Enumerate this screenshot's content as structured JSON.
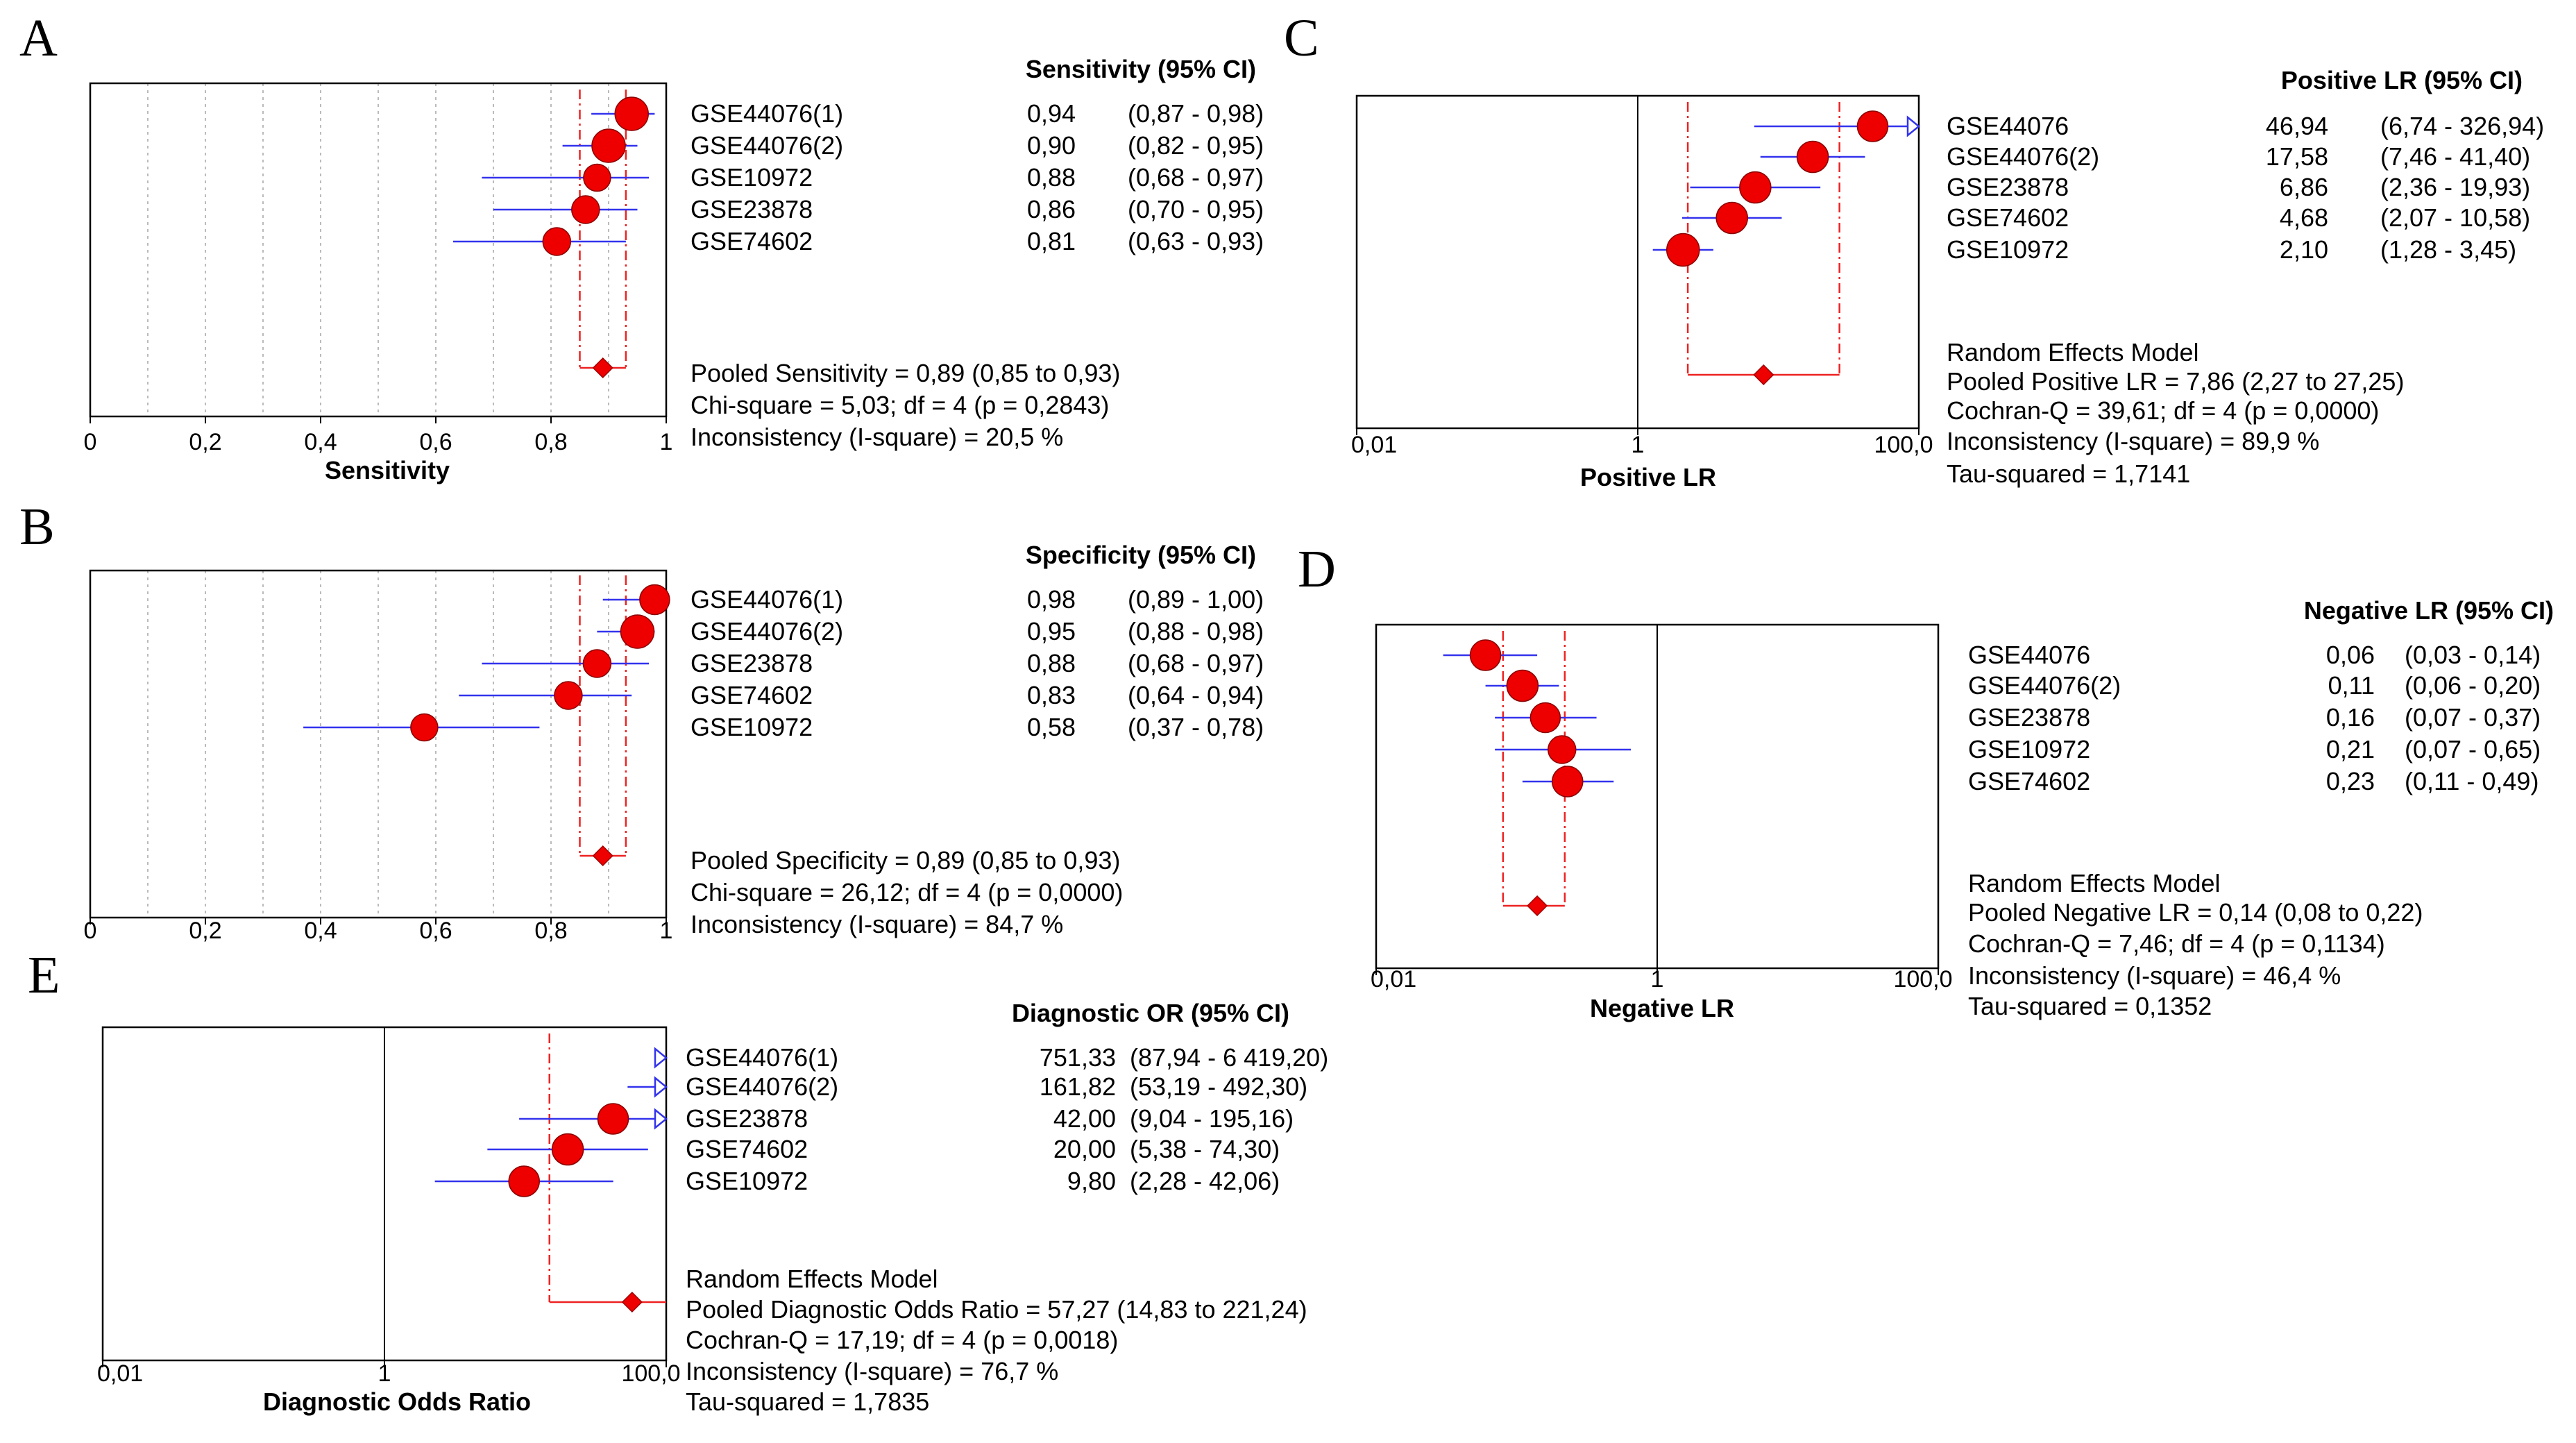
{
  "chart_data": [
    {
      "panel": "A",
      "type": "forest",
      "scale": "linear",
      "xlim": [
        0,
        1
      ],
      "xticks": [
        "0",
        "0,2",
        "0,4",
        "0,6",
        "0,8",
        "1"
      ],
      "xlabel": "Sensitivity",
      "header": "Sensitivity (95% CI)",
      "pooled": {
        "value": 0.89,
        "ci": [
          0.85,
          0.93
        ]
      },
      "arrow_studies": [],
      "studies": [
        {
          "name": "GSE44076(1)",
          "value_text": "0,94",
          "ci_text": "(0,87 - 0,98)",
          "value": 0.94,
          "ci": [
            0.87,
            0.98
          ],
          "weight": 1.0
        },
        {
          "name": "GSE44076(2)",
          "value_text": "0,90",
          "ci_text": "(0,82 - 0,95)",
          "value": 0.9,
          "ci": [
            0.82,
            0.95
          ],
          "weight": 1.0
        },
        {
          "name": "GSE10972",
          "value_text": "0,88",
          "ci_text": "(0,68 - 0,97)",
          "value": 0.88,
          "ci": [
            0.68,
            0.97
          ],
          "weight": 0.55
        },
        {
          "name": "GSE23878",
          "value_text": "0,86",
          "ci_text": "(0,70 - 0,95)",
          "value": 0.86,
          "ci": [
            0.7,
            0.95
          ],
          "weight": 0.6
        },
        {
          "name": "GSE74602",
          "value_text": "0,81",
          "ci_text": "(0,63 - 0,93)",
          "value": 0.81,
          "ci": [
            0.63,
            0.93
          ],
          "weight": 0.6
        }
      ],
      "summary": [
        "Pooled Sensitivity = 0,89 (0,85 to 0,93)",
        "Chi-square = 5,03; df =  4 (p = 0,2843)",
        "Inconsistency (I-square) = 20,5 %"
      ]
    },
    {
      "panel": "B",
      "type": "forest",
      "scale": "linear",
      "xlim": [
        0,
        1
      ],
      "xticks": [
        "0",
        "0,2",
        "0,4",
        "0,6",
        "0,8",
        "1"
      ],
      "xlabel": "",
      "header": "Specificity (95% CI)",
      "pooled": {
        "value": 0.89,
        "ci": [
          0.85,
          0.93
        ]
      },
      "arrow_studies": [],
      "studies": [
        {
          "name": "GSE44076(1)",
          "value_text": "0,98",
          "ci_text": "(0,89 - 1,00)",
          "value": 0.98,
          "ci": [
            0.89,
            1.0
          ],
          "weight": 0.75
        },
        {
          "name": "GSE44076(2)",
          "value_text": "0,95",
          "ci_text": "(0,88 - 0,98)",
          "value": 0.95,
          "ci": [
            0.88,
            0.98
          ],
          "weight": 1.0
        },
        {
          "name": "GSE23878",
          "value_text": "0,88",
          "ci_text": "(0,68 - 0,97)",
          "value": 0.88,
          "ci": [
            0.68,
            0.97
          ],
          "weight": 0.6
        },
        {
          "name": "GSE74602",
          "value_text": "0,83",
          "ci_text": "(0,64 - 0,94)",
          "value": 0.83,
          "ci": [
            0.64,
            0.94
          ],
          "weight": 0.6
        },
        {
          "name": "GSE10972",
          "value_text": "0,58",
          "ci_text": "(0,37 - 0,78)",
          "value": 0.58,
          "ci": [
            0.37,
            0.78
          ],
          "weight": 0.55
        }
      ],
      "summary": [
        "Pooled Specificity = 0,89 (0,85 to 0,93)",
        "Chi-square = 26,12; df =  4 (p = 0,0000)",
        "Inconsistency (I-square) = 84,7 %"
      ]
    },
    {
      "panel": "C",
      "type": "forest",
      "scale": "log",
      "xlim": [
        0.01,
        100
      ],
      "xticks": [
        "0,01",
        "1",
        "100,0"
      ],
      "xlabel": "Positive LR",
      "header": "Positive LR (95% CI)",
      "pooled": {
        "value": 7.86,
        "ci": [
          2.27,
          27.25
        ]
      },
      "arrow_studies": [
        "GSE44076"
      ],
      "studies": [
        {
          "name": "GSE44076",
          "value_text": "46,94",
          "ci_text": "(6,74 - 326,94)",
          "value": 46.94,
          "ci": [
            6.74,
            326.94
          ],
          "weight": 0.8
        },
        {
          "name": "GSE44076(2)",
          "value_text": "17,58",
          "ci_text": "(7,46 - 41,40)",
          "value": 17.58,
          "ci": [
            7.46,
            41.4
          ],
          "weight": 0.85
        },
        {
          "name": "GSE23878",
          "value_text": "6,86",
          "ci_text": "(2,36 - 19,93)",
          "value": 6.86,
          "ci": [
            2.36,
            19.93
          ],
          "weight": 0.85
        },
        {
          "name": "GSE74602",
          "value_text": "4,68",
          "ci_text": "(2,07 - 10,58)",
          "value": 4.68,
          "ci": [
            2.07,
            10.58
          ],
          "weight": 0.85
        },
        {
          "name": "GSE10972",
          "value_text": "2,10",
          "ci_text": "(1,28 - 3,45)",
          "value": 2.1,
          "ci": [
            1.28,
            3.45
          ],
          "weight": 0.95
        }
      ],
      "summary": [
        "Random Effects Model",
        "Pooled Positive LR = 7,86 (2,27 to 27,25)",
        "Cochran-Q = 39,61; df =  4 (p = 0,0000)",
        "Inconsistency (I-square) = 89,9 %",
        "Tau-squared = 1,7141"
      ]
    },
    {
      "panel": "D",
      "type": "forest",
      "scale": "log",
      "xlim": [
        0.01,
        100
      ],
      "xticks": [
        "0,01",
        "1",
        "100,0"
      ],
      "xlabel": "Negative LR",
      "header": "Negative LR (95% CI)",
      "pooled": {
        "value": 0.14,
        "ci": [
          0.08,
          0.22
        ]
      },
      "arrow_studies": [],
      "studies": [
        {
          "name": "GSE44076",
          "value_text": "0,06",
          "ci_text": "(0,03 - 0,14)",
          "value": 0.06,
          "ci": [
            0.03,
            0.14
          ],
          "weight": 0.8
        },
        {
          "name": "GSE44076(2)",
          "value_text": "0,11",
          "ci_text": "(0,06 - 0,20)",
          "value": 0.11,
          "ci": [
            0.06,
            0.2
          ],
          "weight": 0.85
        },
        {
          "name": "GSE23878",
          "value_text": "0,16",
          "ci_text": "(0,07 - 0,37)",
          "value": 0.16,
          "ci": [
            0.07,
            0.37
          ],
          "weight": 0.75
        },
        {
          "name": "GSE10972",
          "value_text": "0,21",
          "ci_text": "(0,07 - 0,65)",
          "value": 0.21,
          "ci": [
            0.07,
            0.65
          ],
          "weight": 0.6
        },
        {
          "name": "GSE74602",
          "value_text": "0,23",
          "ci_text": "(0,11 - 0,49)",
          "value": 0.23,
          "ci": [
            0.11,
            0.49
          ],
          "weight": 0.8
        }
      ],
      "summary": [
        "Random Effects Model",
        "Pooled Negative LR = 0,14 (0,08 to 0,22)",
        "Cochran-Q = 7,46; df =  4 (p = 0,1134)",
        "Inconsistency (I-square) = 46,4 %",
        "Tau-squared = 0,1352"
      ]
    },
    {
      "panel": "E",
      "type": "forest",
      "scale": "log",
      "xlim": [
        0.01,
        100
      ],
      "xticks": [
        "0,01",
        "1",
        "100,0"
      ],
      "xlabel": "Diagnostic Odds Ratio",
      "header": "Diagnostic OR (95% CI)",
      "pooled": {
        "value": 57.27,
        "ci": [
          14.83,
          221.24
        ]
      },
      "arrow_studies": [
        "GSE44076(1)",
        "GSE44076(2)",
        "GSE23878"
      ],
      "studies": [
        {
          "name": "GSE44076(1)",
          "value_text": "751,33",
          "ci_text": "(87,94 - 6 419,20)",
          "value": 751.33,
          "ci": [
            87.94,
            6419.2
          ],
          "weight": 0.7
        },
        {
          "name": "GSE44076(2)",
          "value_text": "161,82",
          "ci_text": "(53,19 - 492,30)",
          "value": 161.82,
          "ci": [
            53.19,
            492.3
          ],
          "weight": 0.85
        },
        {
          "name": "GSE23878",
          "value_text": "42,00",
          "ci_text": "(9,04 - 195,16)",
          "value": 42.0,
          "ci": [
            9.04,
            195.16
          ],
          "weight": 0.8
        },
        {
          "name": "GSE74602",
          "value_text": "20,00",
          "ci_text": "(5,38 - 74,30)",
          "value": 20.0,
          "ci": [
            5.38,
            74.3
          ],
          "weight": 0.85
        },
        {
          "name": "GSE10972",
          "value_text": "9,80",
          "ci_text": "(2,28 - 42,06)",
          "value": 9.8,
          "ci": [
            2.28,
            42.06
          ],
          "weight": 0.8
        }
      ],
      "summary": [
        "Random Effects Model",
        "Pooled Diagnostic Odds Ratio = 57,27 (14,83 to 221,24)",
        "Cochran-Q = 17,19; df =  4 (p = 0,0018)",
        "Inconsistency (I-square) = 76,7 %",
        "Tau-squared = 1,7835"
      ]
    }
  ],
  "colors": {
    "marker": "#ee0000",
    "ci_line": "#3333ee",
    "pooled_line": "#ee2222",
    "grid": "#bbbbbb",
    "axis": "#000000"
  }
}
